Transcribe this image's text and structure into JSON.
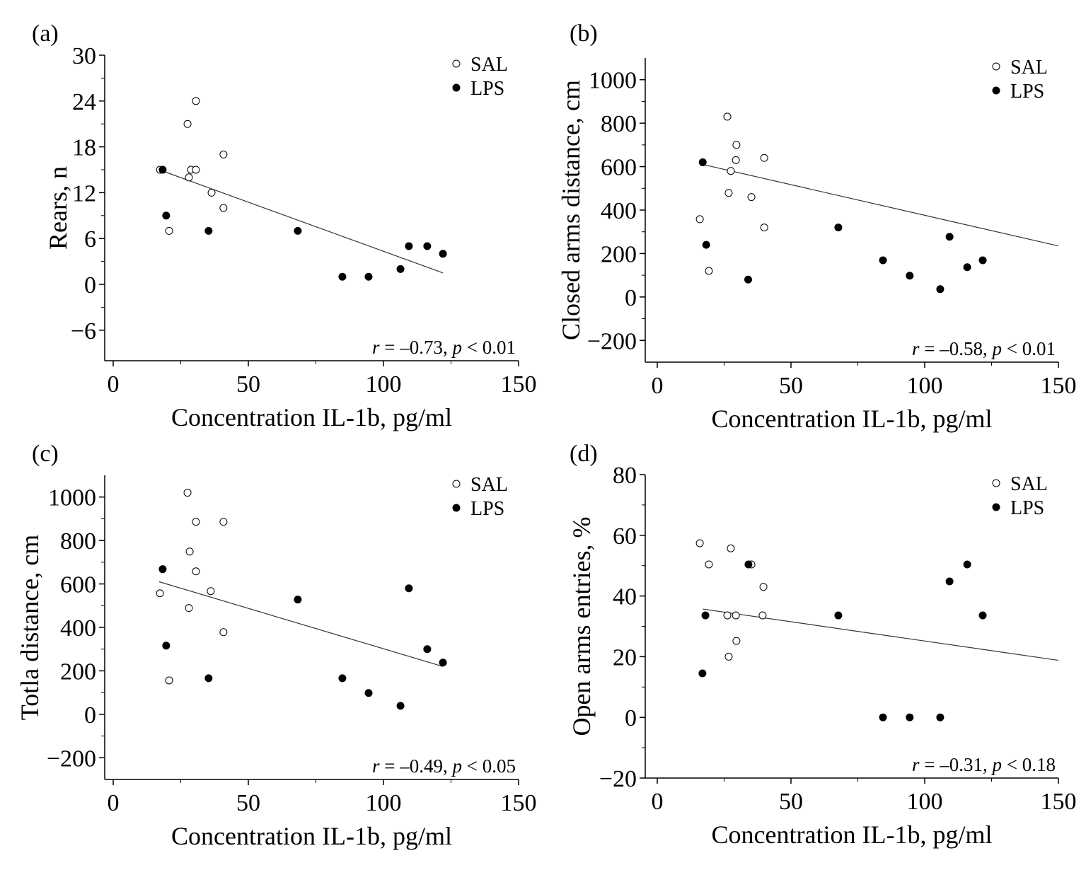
{
  "chart_data": [
    {
      "type": "scatter",
      "panel_label": "(a)",
      "xlabel": "Concentration IL-1b, pg/ml",
      "ylabel": "Rears, n",
      "xlim": [
        0,
        150
      ],
      "ylim": [
        -10,
        30
      ],
      "xticks": [
        0,
        50,
        100,
        150
      ],
      "yticks": [
        -6,
        0,
        6,
        12,
        18,
        24,
        30
      ],
      "ytick_labels": [
        "−6",
        "0",
        "6",
        "12",
        "18",
        "24",
        "30"
      ],
      "legend": "top-right",
      "annotation": {
        "r": "r",
        "r_value": " = –0.73, ",
        "p": "p",
        "p_value": " < 0.01"
      },
      "series": [
        {
          "name": "SAL",
          "marker": "open-circle",
          "points": [
            [
              17.3,
              15
            ],
            [
              20.7,
              7
            ],
            [
              27.5,
              21
            ],
            [
              28,
              14
            ],
            [
              28.8,
              15
            ],
            [
              30.6,
              24
            ],
            [
              30.6,
              15
            ],
            [
              36.4,
              12
            ],
            [
              40.8,
              17
            ],
            [
              40.8,
              10
            ]
          ]
        },
        {
          "name": "LPS",
          "marker": "filled-circle",
          "points": [
            [
              18.3,
              15
            ],
            [
              19.6,
              9
            ],
            [
              35.3,
              7
            ],
            [
              68.3,
              7
            ],
            [
              84.8,
              1
            ],
            [
              94.5,
              1
            ],
            [
              106.3,
              2
            ],
            [
              109.4,
              5
            ],
            [
              116.2,
              5
            ],
            [
              122,
              4
            ]
          ]
        }
      ],
      "fit_line": [
        [
          17,
          15
        ],
        [
          122,
          1.5
        ]
      ]
    },
    {
      "type": "scatter",
      "panel_label": "(b)",
      "xlabel": "Concentration IL-1b, pg/ml",
      "ylabel": "Closed arms distance, cm",
      "xlim": [
        0,
        150
      ],
      "ylim": [
        -300,
        1100
      ],
      "xticks": [
        0,
        50,
        100,
        150
      ],
      "yticks": [
        -200,
        0,
        200,
        400,
        600,
        800,
        1000
      ],
      "ytick_labels": [
        "−200",
        "0",
        "200",
        "400",
        "600",
        "800",
        "1000"
      ],
      "legend": "top-right",
      "annotation": {
        "r": "r",
        "r_value": " = –0.58, ",
        "p": "p",
        "p_value": " < 0.01"
      },
      "series": [
        {
          "name": "SAL",
          "marker": "open-circle",
          "points": [
            [
              15.9,
              358
            ],
            [
              19.3,
              120
            ],
            [
              26.2,
              830
            ],
            [
              26.7,
              479
            ],
            [
              27.5,
              580
            ],
            [
              29.4,
              630
            ],
            [
              29.6,
              700
            ],
            [
              35.2,
              460
            ],
            [
              40,
              320
            ],
            [
              40,
              640
            ]
          ]
        },
        {
          "name": "LPS",
          "marker": "filled-circle",
          "points": [
            [
              17,
              620
            ],
            [
              18.3,
              240
            ],
            [
              34,
              80
            ],
            [
              67.7,
              320
            ],
            [
              84.4,
              169
            ],
            [
              94.4,
              98
            ],
            [
              105.8,
              36
            ],
            [
              109.3,
              277
            ],
            [
              115.9,
              137
            ],
            [
              121.7,
              169
            ]
          ]
        }
      ],
      "fit_line": [
        [
          17,
          610
        ],
        [
          150,
          235
        ]
      ]
    },
    {
      "type": "scatter",
      "panel_label": "(c)",
      "xlabel": "Concentration IL-1b, pg/ml",
      "ylabel": "Totla distance, cm",
      "xlim": [
        0,
        150
      ],
      "ylim": [
        -300,
        1100
      ],
      "xticks": [
        0,
        50,
        100,
        150
      ],
      "yticks": [
        -200,
        0,
        200,
        400,
        600,
        800,
        1000
      ],
      "ytick_labels": [
        "−200",
        "0",
        "200",
        "400",
        "600",
        "800",
        "1000"
      ],
      "legend": "top-right",
      "annotation": {
        "r": "r",
        "r_value": " = –0.49, ",
        "p": "p",
        "p_value": " < 0.05"
      },
      "series": [
        {
          "name": "SAL",
          "marker": "open-circle",
          "points": [
            [
              17.3,
              557
            ],
            [
              20.7,
              156
            ],
            [
              27.5,
              1020
            ],
            [
              28,
              489
            ],
            [
              28.3,
              749
            ],
            [
              30.6,
              886
            ],
            [
              30.6,
              658
            ],
            [
              36.1,
              567
            ],
            [
              40.8,
              886
            ],
            [
              40.8,
              378
            ]
          ]
        },
        {
          "name": "LPS",
          "marker": "filled-circle",
          "points": [
            [
              18.3,
              668
            ],
            [
              19.6,
              316
            ],
            [
              35.3,
              166
            ],
            [
              68.3,
              528
            ],
            [
              84.8,
              166
            ],
            [
              94.5,
              98
            ],
            [
              106.3,
              39
            ],
            [
              109.4,
              580
            ],
            [
              116.2,
              300
            ],
            [
              122,
              238
            ]
          ]
        }
      ],
      "fit_line": [
        [
          17,
          610
        ],
        [
          122,
          220
        ]
      ]
    },
    {
      "type": "scatter",
      "panel_label": "(d)",
      "xlabel": "Concentration IL-1b, pg/ml",
      "ylabel": "Open arms entries, %",
      "xlim": [
        0,
        150
      ],
      "ylim": [
        -20,
        80
      ],
      "xticks": [
        0,
        50,
        100,
        150
      ],
      "yticks": [
        -20,
        0,
        20,
        40,
        60,
        80
      ],
      "ytick_labels": [
        "−20",
        "0",
        "20",
        "40",
        "60",
        "80"
      ],
      "legend": "top-right",
      "annotation": {
        "r": "r",
        "r_value": " = –0.31, ",
        "p": "p",
        "p_value": " < 0.18"
      },
      "series": [
        {
          "name": "SAL",
          "marker": "open-circle",
          "points": [
            [
              15.9,
              57.4
            ],
            [
              19.3,
              50.4
            ],
            [
              26.2,
              33.6
            ],
            [
              26.7,
              20
            ],
            [
              27.5,
              55.7
            ],
            [
              29.4,
              33.6
            ],
            [
              29.6,
              25.2
            ],
            [
              35.2,
              50.4
            ],
            [
              39.7,
              43
            ],
            [
              39.4,
              33.6
            ]
          ]
        },
        {
          "name": "LPS",
          "marker": "filled-circle",
          "points": [
            [
              18,
              33.6
            ],
            [
              16.9,
              14.5
            ],
            [
              34.1,
              50.4
            ],
            [
              67.7,
              33.6
            ],
            [
              84.4,
              0
            ],
            [
              94.4,
              0
            ],
            [
              105.8,
              0
            ],
            [
              109.3,
              44.8
            ],
            [
              115.9,
              50.4
            ],
            [
              121.7,
              33.6
            ]
          ]
        }
      ],
      "fit_line": [
        [
          17,
          35.7
        ],
        [
          150,
          18.8
        ]
      ]
    }
  ]
}
